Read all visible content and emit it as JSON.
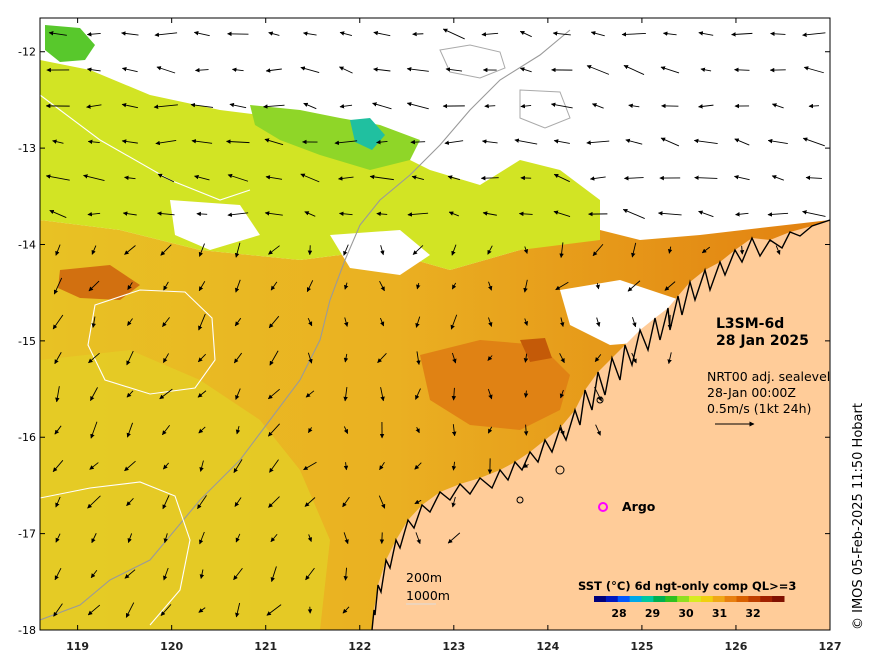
{
  "map": {
    "product_title": "L3SM-6d",
    "date_title": "28 Jan 2025",
    "vector_info": {
      "line1": "NRT00 adj. sealevel",
      "line2": "28-Jan 00:00Z",
      "line3": "0.5m/s (1kt 24h)"
    },
    "legend": {
      "title": "SST (°C) 6d ngt-only comp QL>=3",
      "ticks": [
        "28",
        "29",
        "30",
        "31",
        "32"
      ],
      "colors": [
        "#00007a",
        "#0018c0",
        "#0058ff",
        "#00a8e8",
        "#00c8a0",
        "#00b050",
        "#30c020",
        "#90e020",
        "#d8ec20",
        "#f0d010",
        "#f0a818",
        "#e88010",
        "#d86000",
        "#c04000",
        "#a02000",
        "#801000"
      ]
    },
    "isobaths": {
      "label_200": "200m",
      "label_1000": "1000m",
      "color_200": "#9a9a9a",
      "color_1000": "#ffffff"
    },
    "argo": {
      "label": "Argo",
      "color": "#ff00ff"
    },
    "credit": "© IMOS 05-Feb-2025 11:50 Hobart",
    "axes": {
      "lon_ticks": [
        "119",
        "120",
        "121",
        "122",
        "123",
        "124",
        "125",
        "126",
        "127"
      ],
      "lat_ticks": [
        "-12",
        "-13",
        "-14",
        "-15",
        "-16",
        "-17",
        "-18"
      ],
      "lon_range": [
        118.6,
        127
      ],
      "lat_range": [
        -18,
        -11.65
      ]
    },
    "colors": {
      "land": "#ffcc99",
      "sst_warm": "#ec9a1c",
      "sst_mid": "#e8c020",
      "sst_cool": "#d4ea22",
      "sst_cold": "#8ed624",
      "coast": "#000000"
    }
  }
}
